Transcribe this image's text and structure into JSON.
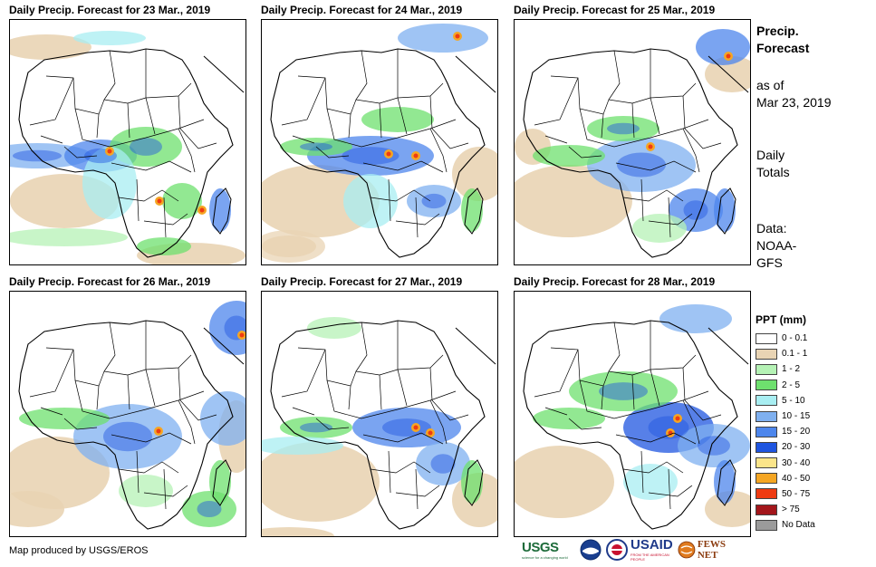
{
  "panels": [
    {
      "title": "Daily Precip. Forecast for 23 Mar., 2019"
    },
    {
      "title": "Daily Precip. Forecast for 24 Mar., 2019"
    },
    {
      "title": "Daily Precip. Forecast for 25 Mar., 2019"
    },
    {
      "title": "Daily Precip. Forecast for 26 Mar., 2019"
    },
    {
      "title": "Daily Precip. Forecast for 27 Mar., 2019"
    },
    {
      "title": "Daily Precip. Forecast for 28 Mar., 2019"
    }
  ],
  "side": {
    "title_line1": "Precip.",
    "title_line2": "Forecast",
    "asof_line1": "as of",
    "asof_line2": "Mar 23, 2019",
    "totals_line1": "Daily",
    "totals_line2": "Totals",
    "data_line1": "Data:",
    "data_line2": "NOAA-",
    "data_line3": "GFS"
  },
  "legend": {
    "title": "PPT (mm)",
    "items": [
      {
        "label": "0 - 0.1",
        "color": "#ffffff"
      },
      {
        "label": "0.1 - 1",
        "color": "#e9d4b4"
      },
      {
        "label": "1 - 2",
        "color": "#b5f2b5"
      },
      {
        "label": "2 - 5",
        "color": "#6ee06e"
      },
      {
        "label": "5 - 10",
        "color": "#a8eef2"
      },
      {
        "label": "10 - 15",
        "color": "#7fb0f0"
      },
      {
        "label": "15 - 20",
        "color": "#4d86ec"
      },
      {
        "label": "20 - 30",
        "color": "#1f55e0"
      },
      {
        "label": "30 - 40",
        "color": "#fbe58a"
      },
      {
        "label": "40 - 50",
        "color": "#f5a623"
      },
      {
        "label": "50 - 75",
        "color": "#ef3b12"
      },
      {
        "label": "> 75",
        "color": "#a3161b"
      },
      {
        "label": "No Data",
        "color": "#9b9b9b"
      }
    ]
  },
  "footer": {
    "credit": "Map produced by USGS/EROS",
    "logo_usgs": "USGS",
    "logo_usgs_tagline": "science for a changing world",
    "logo_usaid": "USAID",
    "logo_usaid_tagline": "FROM THE AMERICAN PEOPLE",
    "logo_fews": "FEWS NET"
  }
}
